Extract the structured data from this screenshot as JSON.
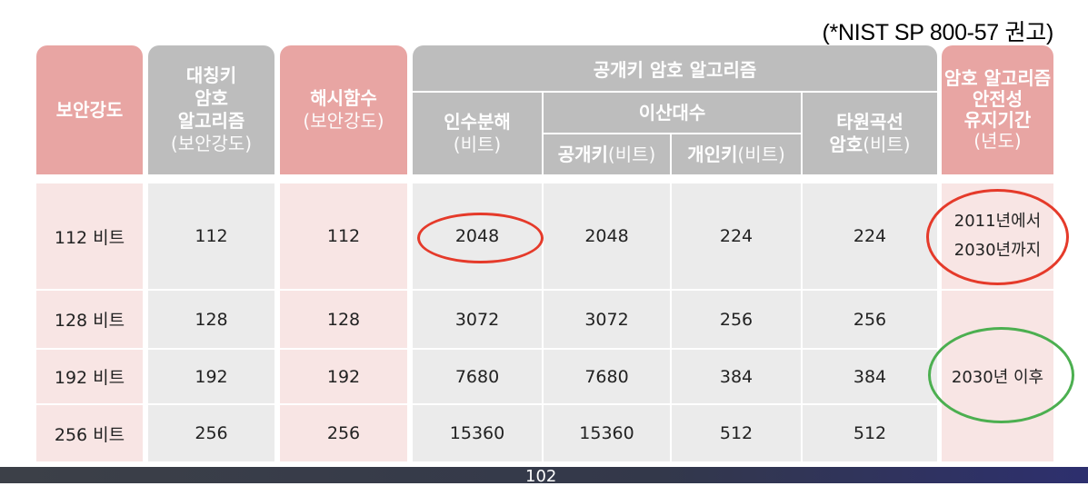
{
  "note": "(*NIST SP 800-57 권고)",
  "headers": {
    "security_strength": "보안강도",
    "symmetric": {
      "line1": "대칭키",
      "line2": "암호",
      "line3": "알고리즘",
      "paren": "(보안강도)"
    },
    "hash": {
      "line1": "해시함수",
      "paren": "(보안강도)"
    },
    "public_key": "공개키 암호 알고리즘",
    "factoring": {
      "label": "인수분해",
      "paren": "(비트)"
    },
    "discrete_log": "이산대수",
    "dl_public": {
      "label": "공개키",
      "paren": "(비트)"
    },
    "dl_private": {
      "label": "개인키",
      "paren": "(비트)"
    },
    "elliptic": {
      "line1": "타원곡선",
      "label": "암호",
      "paren": "(비트)"
    },
    "period": {
      "line1": "암호 알고리즘",
      "line2": "안전성",
      "line3": "유지기간",
      "paren": "(년도)"
    }
  },
  "rows": [
    {
      "strength": "112 비트",
      "symmetric": "112",
      "hash": "112",
      "factoring": "2048",
      "dl_public": "2048",
      "dl_private": "224",
      "elliptic": "224"
    },
    {
      "strength": "128 비트",
      "symmetric": "128",
      "hash": "128",
      "factoring": "3072",
      "dl_public": "3072",
      "dl_private": "256",
      "elliptic": "256"
    },
    {
      "strength": "192 비트",
      "symmetric": "192",
      "hash": "192",
      "factoring": "7680",
      "dl_public": "7680",
      "dl_private": "384",
      "elliptic": "384"
    },
    {
      "strength": "256 비트",
      "symmetric": "256",
      "hash": "256",
      "factoring": "15360",
      "dl_public": "15360",
      "dl_private": "512",
      "elliptic": "512"
    }
  ],
  "periods": {
    "first_line1": "2011년에서",
    "first_line2": "2030년까지",
    "after": "2030년 이후"
  },
  "colors": {
    "header_pink": "#e8a5a3",
    "header_gray": "#bdbdbd",
    "body_pink": "#f8e5e4",
    "body_gray": "#ebebeb",
    "red_circle": "#e53a2a",
    "green_circle": "#4caf50"
  },
  "page_number": "102"
}
